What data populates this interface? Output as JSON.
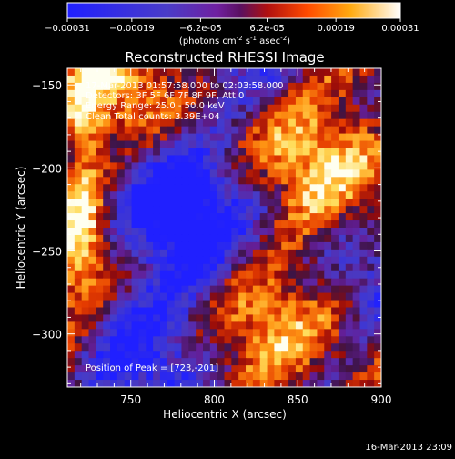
{
  "chart_data": {
    "type": "heatmap",
    "title": "Reconstructed RHESSI Image",
    "xlabel": "Heliocentric X (arcsec)",
    "ylabel": "Heliocentric Y (arcsec)",
    "xlim": [
      712,
      900
    ],
    "ylim": [
      -332,
      -140
    ],
    "x_ticks": [
      750,
      800,
      850,
      900
    ],
    "y_ticks": [
      -150,
      -200,
      -250,
      -300
    ],
    "colorbar": {
      "tick_labels": [
        "-0.00031",
        "-0.00019",
        "-6.2e-05",
        "6.2e-05",
        "0.00019",
        "0.00031"
      ],
      "tick_values": [
        -0.00031,
        -0.00019,
        -6.2e-05,
        6.2e-05,
        0.00019,
        0.00031
      ],
      "range": [
        -0.00031,
        0.00031
      ],
      "units_line1": "(photons cm",
      "units_sup1": "-2",
      "units_line2": " s",
      "units_sup2": "-1",
      "units_line3": " asec",
      "units_sup3": "-2",
      "units_close": ")"
    },
    "annotations": {
      "time_range": "17-Mar-2013 01:57:58.000 to 02:03:58.000",
      "detectors": "Detectors: 3F 5F 6F 7F 8F 9F, Att 0",
      "energy": "Energy Range: 25.0 - 50.0 keV",
      "clean": "Clean    Total counts: 3.39E+04",
      "peak": "Position of Peak = [723,-201]"
    },
    "peak_position": [
      723,
      -201
    ],
    "grid": false
  },
  "footer": {
    "timestamp": "16-Mar-2013 23:09"
  },
  "colors": {
    "background": "#000000",
    "foreground": "#ffffff",
    "negative": "#3b3bff",
    "mid": "#7a1fa0",
    "positive_low": "#c81400",
    "positive_mid": "#ff8c00",
    "positive_high": "#ffffe6"
  }
}
